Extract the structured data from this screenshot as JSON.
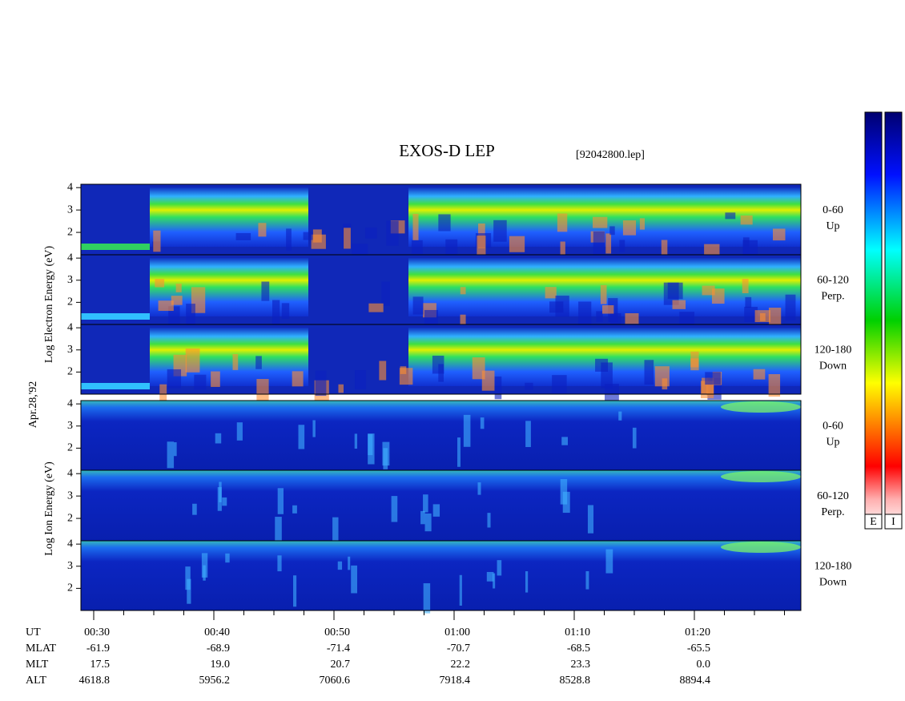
{
  "title": "EXOS-D LEP",
  "file": "[92042800.lep]",
  "date_label": "Apr.28,'92",
  "electron_label": "Log  Electron  Energy (eV)",
  "ion_label": "Log  Ion  Energy (eV)",
  "panels": [
    {
      "species": "electron",
      "angle": "0-60",
      "direction": "Up",
      "ylim": [
        1,
        4.15
      ],
      "yticks": [
        2,
        3,
        4
      ]
    },
    {
      "species": "electron",
      "angle": "60-120",
      "direction": "Perp.",
      "ylim": [
        1,
        4.15
      ],
      "yticks": [
        2,
        3,
        4
      ]
    },
    {
      "species": "electron",
      "angle": "120-180",
      "direction": "Down",
      "ylim": [
        1,
        4.15
      ],
      "yticks": [
        2,
        3,
        4
      ]
    },
    {
      "species": "ion",
      "angle": "0-60",
      "direction": "Up",
      "ylim": [
        1,
        4.15
      ],
      "yticks": [
        2,
        3,
        4
      ]
    },
    {
      "species": "ion",
      "angle": "60-120",
      "direction": "Perp.",
      "ylim": [
        1,
        4.15
      ],
      "yticks": [
        2,
        3,
        4
      ]
    },
    {
      "species": "ion",
      "angle": "120-180",
      "direction": "Down",
      "ylim": [
        1,
        4.15
      ],
      "yticks": [
        2,
        3,
        4
      ]
    }
  ],
  "x_table": [
    {
      "name": "UT",
      "values": [
        "00:30",
        "00:40",
        "00:50",
        "01:00",
        "01:10",
        "01:20"
      ]
    },
    {
      "name": "MLAT",
      "values": [
        "-61.9",
        "-68.9",
        "-71.4",
        "-70.7",
        "-68.5",
        "-65.5"
      ]
    },
    {
      "name": "MLT",
      "values": [
        "17.5",
        "19.0",
        "20.7",
        "22.2",
        "23.3",
        "0.0"
      ]
    },
    {
      "name": "ALT",
      "values": [
        "4618.8",
        "5956.2",
        "7060.6",
        "7918.4",
        "8528.8",
        "8894.4"
      ]
    }
  ],
  "colorbar_labels": [
    "E",
    "I"
  ]
}
